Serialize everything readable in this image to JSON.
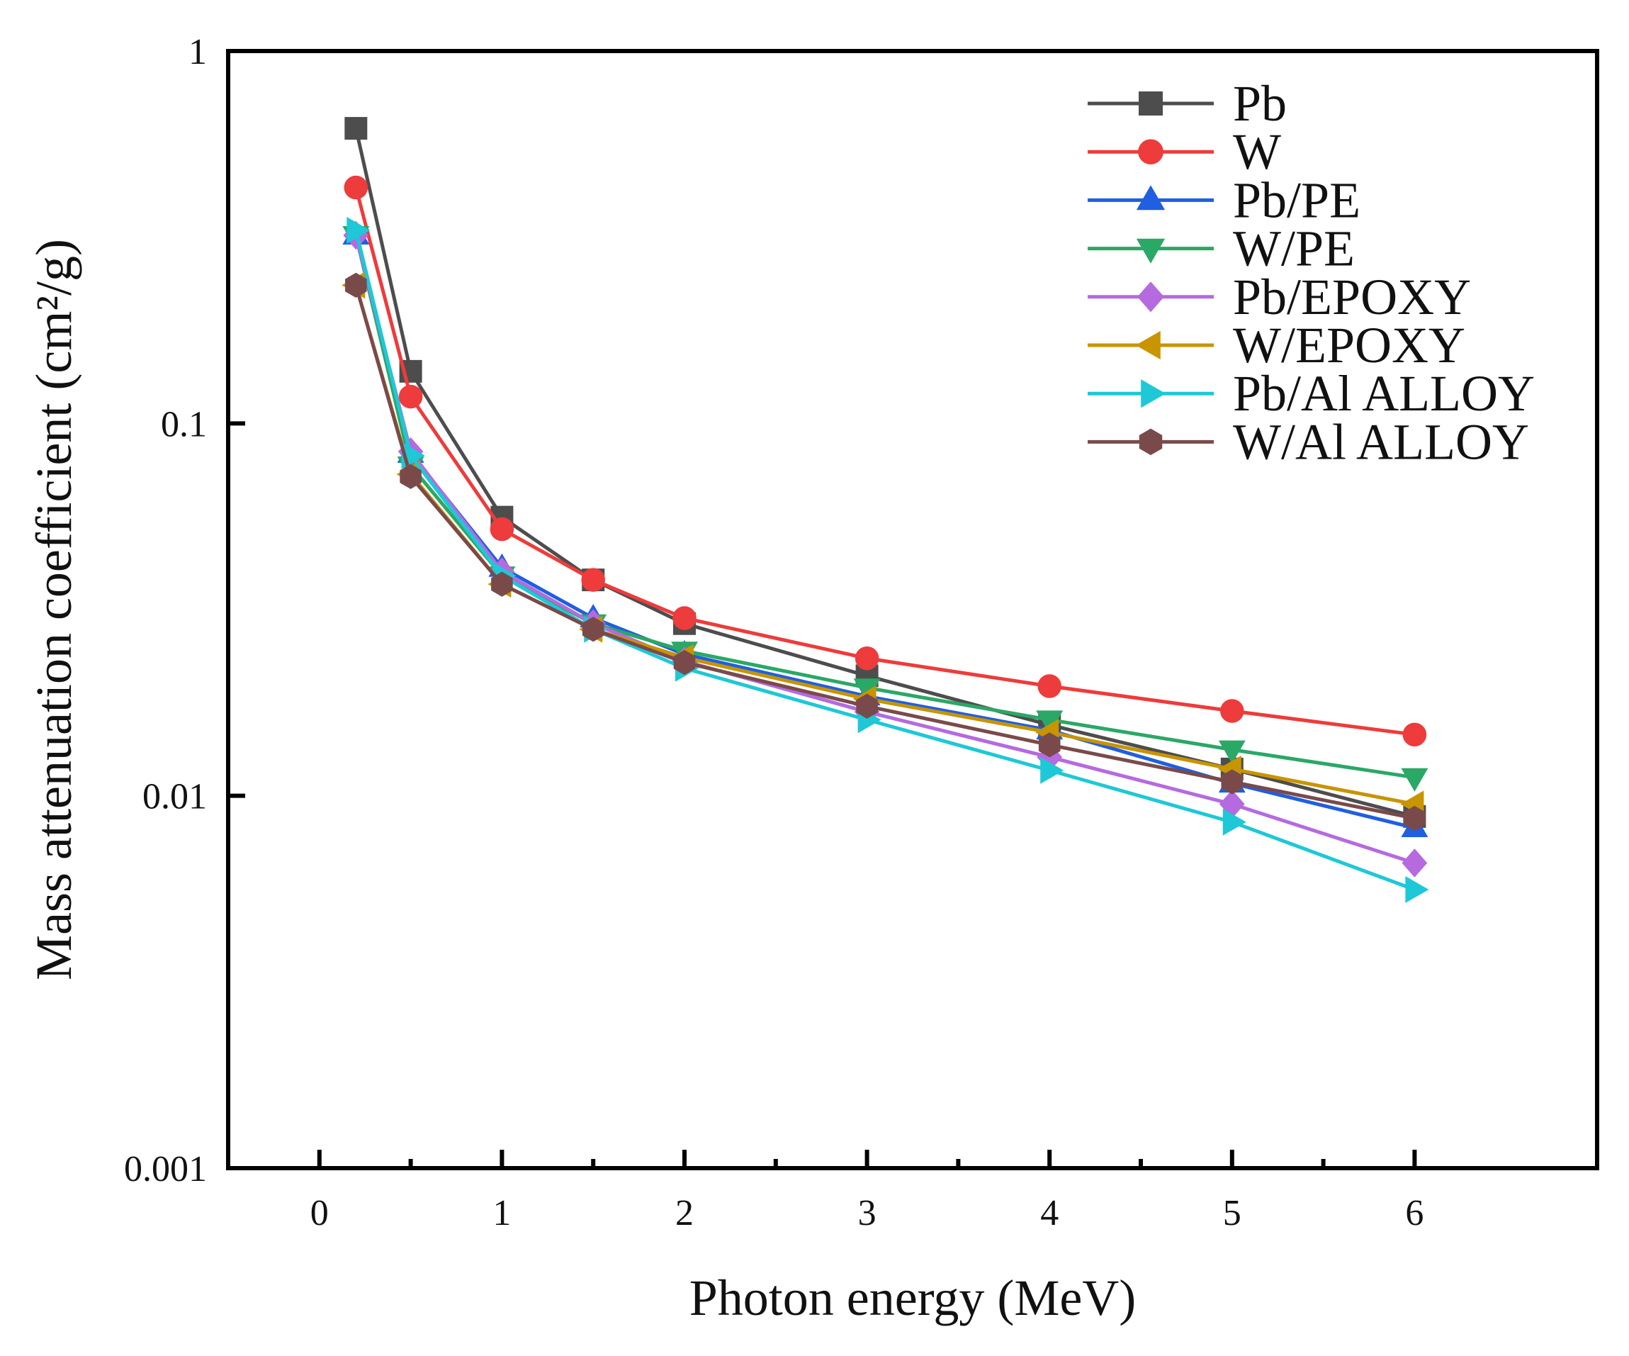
{
  "chart_data": {
    "type": "line",
    "title": "",
    "xlabel": "Photon energy (MeV)",
    "ylabel": "Mass attenuation coefficient (cm²/g)",
    "xlim": [
      -0.5,
      7.0
    ],
    "ylim": [
      0.001,
      1
    ],
    "yscale": "log",
    "xticks": [
      0,
      1,
      2,
      3,
      4,
      5,
      6
    ],
    "xtick_labels": [
      "0",
      "1",
      "2",
      "3",
      "4",
      "5",
      "6"
    ],
    "yticks": [
      0.001,
      0.01,
      0.1,
      1
    ],
    "ytick_labels": [
      "0.001",
      "0.01",
      "0.1",
      "1"
    ],
    "grid": false,
    "legend_position": "top-right",
    "x": [
      0.2,
      0.5,
      1,
      1.5,
      2,
      3,
      4,
      5,
      6
    ],
    "series": [
      {
        "name": "Pb",
        "color": "#4d4d4d",
        "marker": "square",
        "values": [
          0.62,
          0.138,
          0.056,
          0.038,
          0.029,
          0.021,
          0.0155,
          0.0118,
          0.0088
        ]
      },
      {
        "name": "W",
        "color": "#ee3b3b",
        "marker": "circle",
        "values": [
          0.43,
          0.118,
          0.052,
          0.038,
          0.03,
          0.0234,
          0.0197,
          0.0169,
          0.0146
        ]
      },
      {
        "name": "Pb/PE",
        "color": "#1f5fe0",
        "marker": "triangle-up",
        "values": [
          0.32,
          0.083,
          0.041,
          0.03,
          0.024,
          0.0185,
          0.015,
          0.0108,
          0.0082
        ]
      },
      {
        "name": "W/PE",
        "color": "#2aa866",
        "marker": "triangle-down",
        "values": [
          0.32,
          0.077,
          0.039,
          0.029,
          0.0245,
          0.0195,
          0.016,
          0.0133,
          0.0112
        ]
      },
      {
        "name": "Pb/EPOXY",
        "color": "#b56ae0",
        "marker": "diamond",
        "values": [
          0.32,
          0.084,
          0.04,
          0.029,
          0.023,
          0.0168,
          0.0127,
          0.0095,
          0.0066
        ]
      },
      {
        "name": "W/EPOXY",
        "color": "#c89400",
        "marker": "triangle-left",
        "values": [
          0.235,
          0.073,
          0.037,
          0.028,
          0.0235,
          0.0182,
          0.0148,
          0.0118,
          0.0095
        ]
      },
      {
        "name": "Pb/Al ALLOY",
        "color": "#1ec8d6",
        "marker": "triangle-right",
        "values": [
          0.33,
          0.082,
          0.039,
          0.028,
          0.022,
          0.016,
          0.0117,
          0.0085,
          0.0056
        ]
      },
      {
        "name": "W/Al ALLOY",
        "color": "#7a4a4a",
        "marker": "hexagon",
        "values": [
          0.235,
          0.072,
          0.037,
          0.028,
          0.0228,
          0.0174,
          0.0137,
          0.0109,
          0.0087
        ]
      }
    ]
  }
}
